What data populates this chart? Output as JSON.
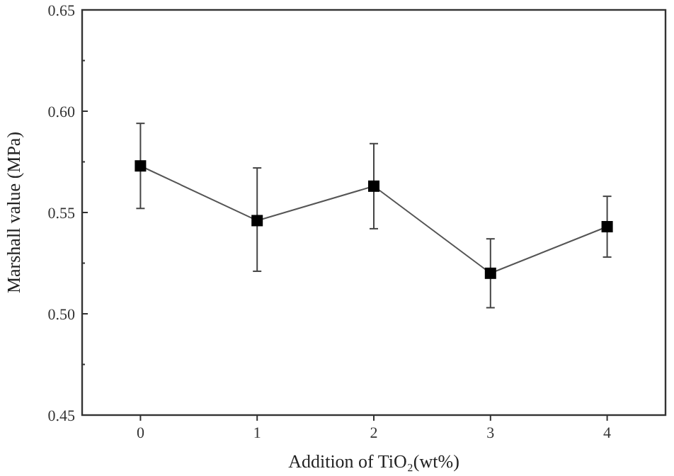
{
  "chart_data": {
    "type": "line",
    "xlabel": "Addition of TiO₂(wt%)",
    "ylabel": "Marshall value (MPa)",
    "x": [
      0,
      1,
      2,
      3,
      4
    ],
    "series": [
      {
        "color": "#000000",
        "values": [
          0.573,
          0.546,
          0.563,
          0.52,
          0.543
        ],
        "errors": [
          [
            0.552,
            0.594
          ],
          [
            0.521,
            0.572
          ],
          [
            0.542,
            0.584
          ],
          [
            0.503,
            0.537
          ],
          [
            0.528,
            0.558
          ]
        ]
      }
    ],
    "xlim": [
      -0.5,
      4.5
    ],
    "xticks": [
      0,
      1,
      2,
      3,
      4
    ],
    "ylim": [
      0.45,
      0.65
    ],
    "yticks": [
      {
        "value": 0.45,
        "label": "0.45"
      },
      {
        "value": 0.5,
        "label": "0.50"
      },
      {
        "value": 0.55,
        "label": "0.55"
      },
      {
        "value": 0.6,
        "label": "0.60"
      },
      {
        "value": 0.65,
        "label": "0.65"
      }
    ],
    "grid": false,
    "marker": "square",
    "line_style": "solid"
  }
}
